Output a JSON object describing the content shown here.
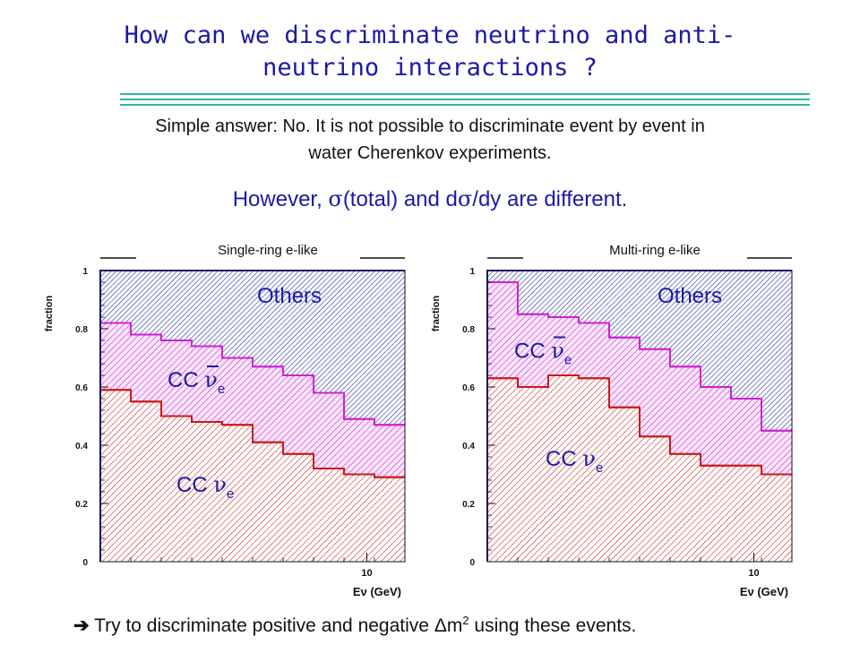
{
  "slide": {
    "title_line1": "How can we discriminate neutrino and anti-",
    "title_line2": "neutrino interactions ?",
    "answer_line1": "Simple answer: No. It is not possible to discriminate event by event in",
    "answer_line2": "water Cherenkov experiments.",
    "highlight_pre": "However, ",
    "highlight_sigma": "σ",
    "highlight_mid": "(total) and d",
    "highlight_sigma2": "σ",
    "highlight_post": "/dy are different.",
    "footer_arrow": "➔",
    "footer_text": " Try to discriminate positive and negative ",
    "footer_delta": "Δ",
    "footer_m": "m",
    "footer_sup": "2",
    "footer_tail": " using these events."
  },
  "colors": {
    "title": "#1a1aa6",
    "rule": "#2fb7a4",
    "others": "#1a1aa6",
    "cc_nuebar": "#d21fd2",
    "cc_nue": "#cc1818"
  },
  "chart_data": [
    {
      "type": "area",
      "stacked": true,
      "title": "Single-ring e-like",
      "ylabel": "fraction",
      "xlabel": "Eν (GeV)",
      "xticks": [
        "10"
      ],
      "yticks": [
        "0",
        "0.2",
        "0.4",
        "0.6",
        "0.8",
        "1"
      ],
      "ylim": [
        0,
        1
      ],
      "bins": 10,
      "series": [
        {
          "name": "CC νe",
          "label_main": "CC ",
          "label_greek": "ν",
          "label_sub": "e",
          "bar": false,
          "values": [
            0.59,
            0.55,
            0.5,
            0.48,
            0.47,
            0.41,
            0.37,
            0.32,
            0.3,
            0.29
          ]
        },
        {
          "name": "CC ν̄e",
          "label_main": "CC ",
          "label_greek": "ν",
          "label_sub": "e",
          "bar": true,
          "values": [
            0.82,
            0.78,
            0.76,
            0.74,
            0.7,
            0.67,
            0.64,
            0.58,
            0.49,
            0.47
          ]
        },
        {
          "name": "Others",
          "label_main": "Others",
          "label_greek": "",
          "label_sub": "",
          "bar": false,
          "values": [
            1,
            1,
            1,
            1,
            1,
            1,
            1,
            1,
            1,
            1
          ]
        }
      ]
    },
    {
      "type": "area",
      "stacked": true,
      "title": "Multi-ring e-like",
      "ylabel": "fraction",
      "xlabel": "Eν (GeV)",
      "xticks": [
        "10"
      ],
      "yticks": [
        "0",
        "0.2",
        "0.4",
        "0.6",
        "0.8",
        "1"
      ],
      "ylim": [
        0,
        1
      ],
      "bins": 10,
      "series": [
        {
          "name": "CC νe",
          "label_main": "CC ",
          "label_greek": "ν",
          "label_sub": "e",
          "bar": false,
          "values": [
            0.63,
            0.6,
            0.64,
            0.63,
            0.53,
            0.43,
            0.37,
            0.33,
            0.33,
            0.3
          ]
        },
        {
          "name": "CC ν̄e",
          "label_main": "CC ",
          "label_greek": "ν",
          "label_sub": "e",
          "bar": true,
          "values": [
            0.96,
            0.85,
            0.84,
            0.82,
            0.77,
            0.73,
            0.67,
            0.6,
            0.56,
            0.45
          ]
        },
        {
          "name": "Others",
          "label_main": "Others",
          "label_greek": "",
          "label_sub": "",
          "bar": false,
          "values": [
            1,
            1,
            1,
            1,
            1,
            1,
            1,
            1,
            1,
            1
          ]
        }
      ]
    }
  ]
}
